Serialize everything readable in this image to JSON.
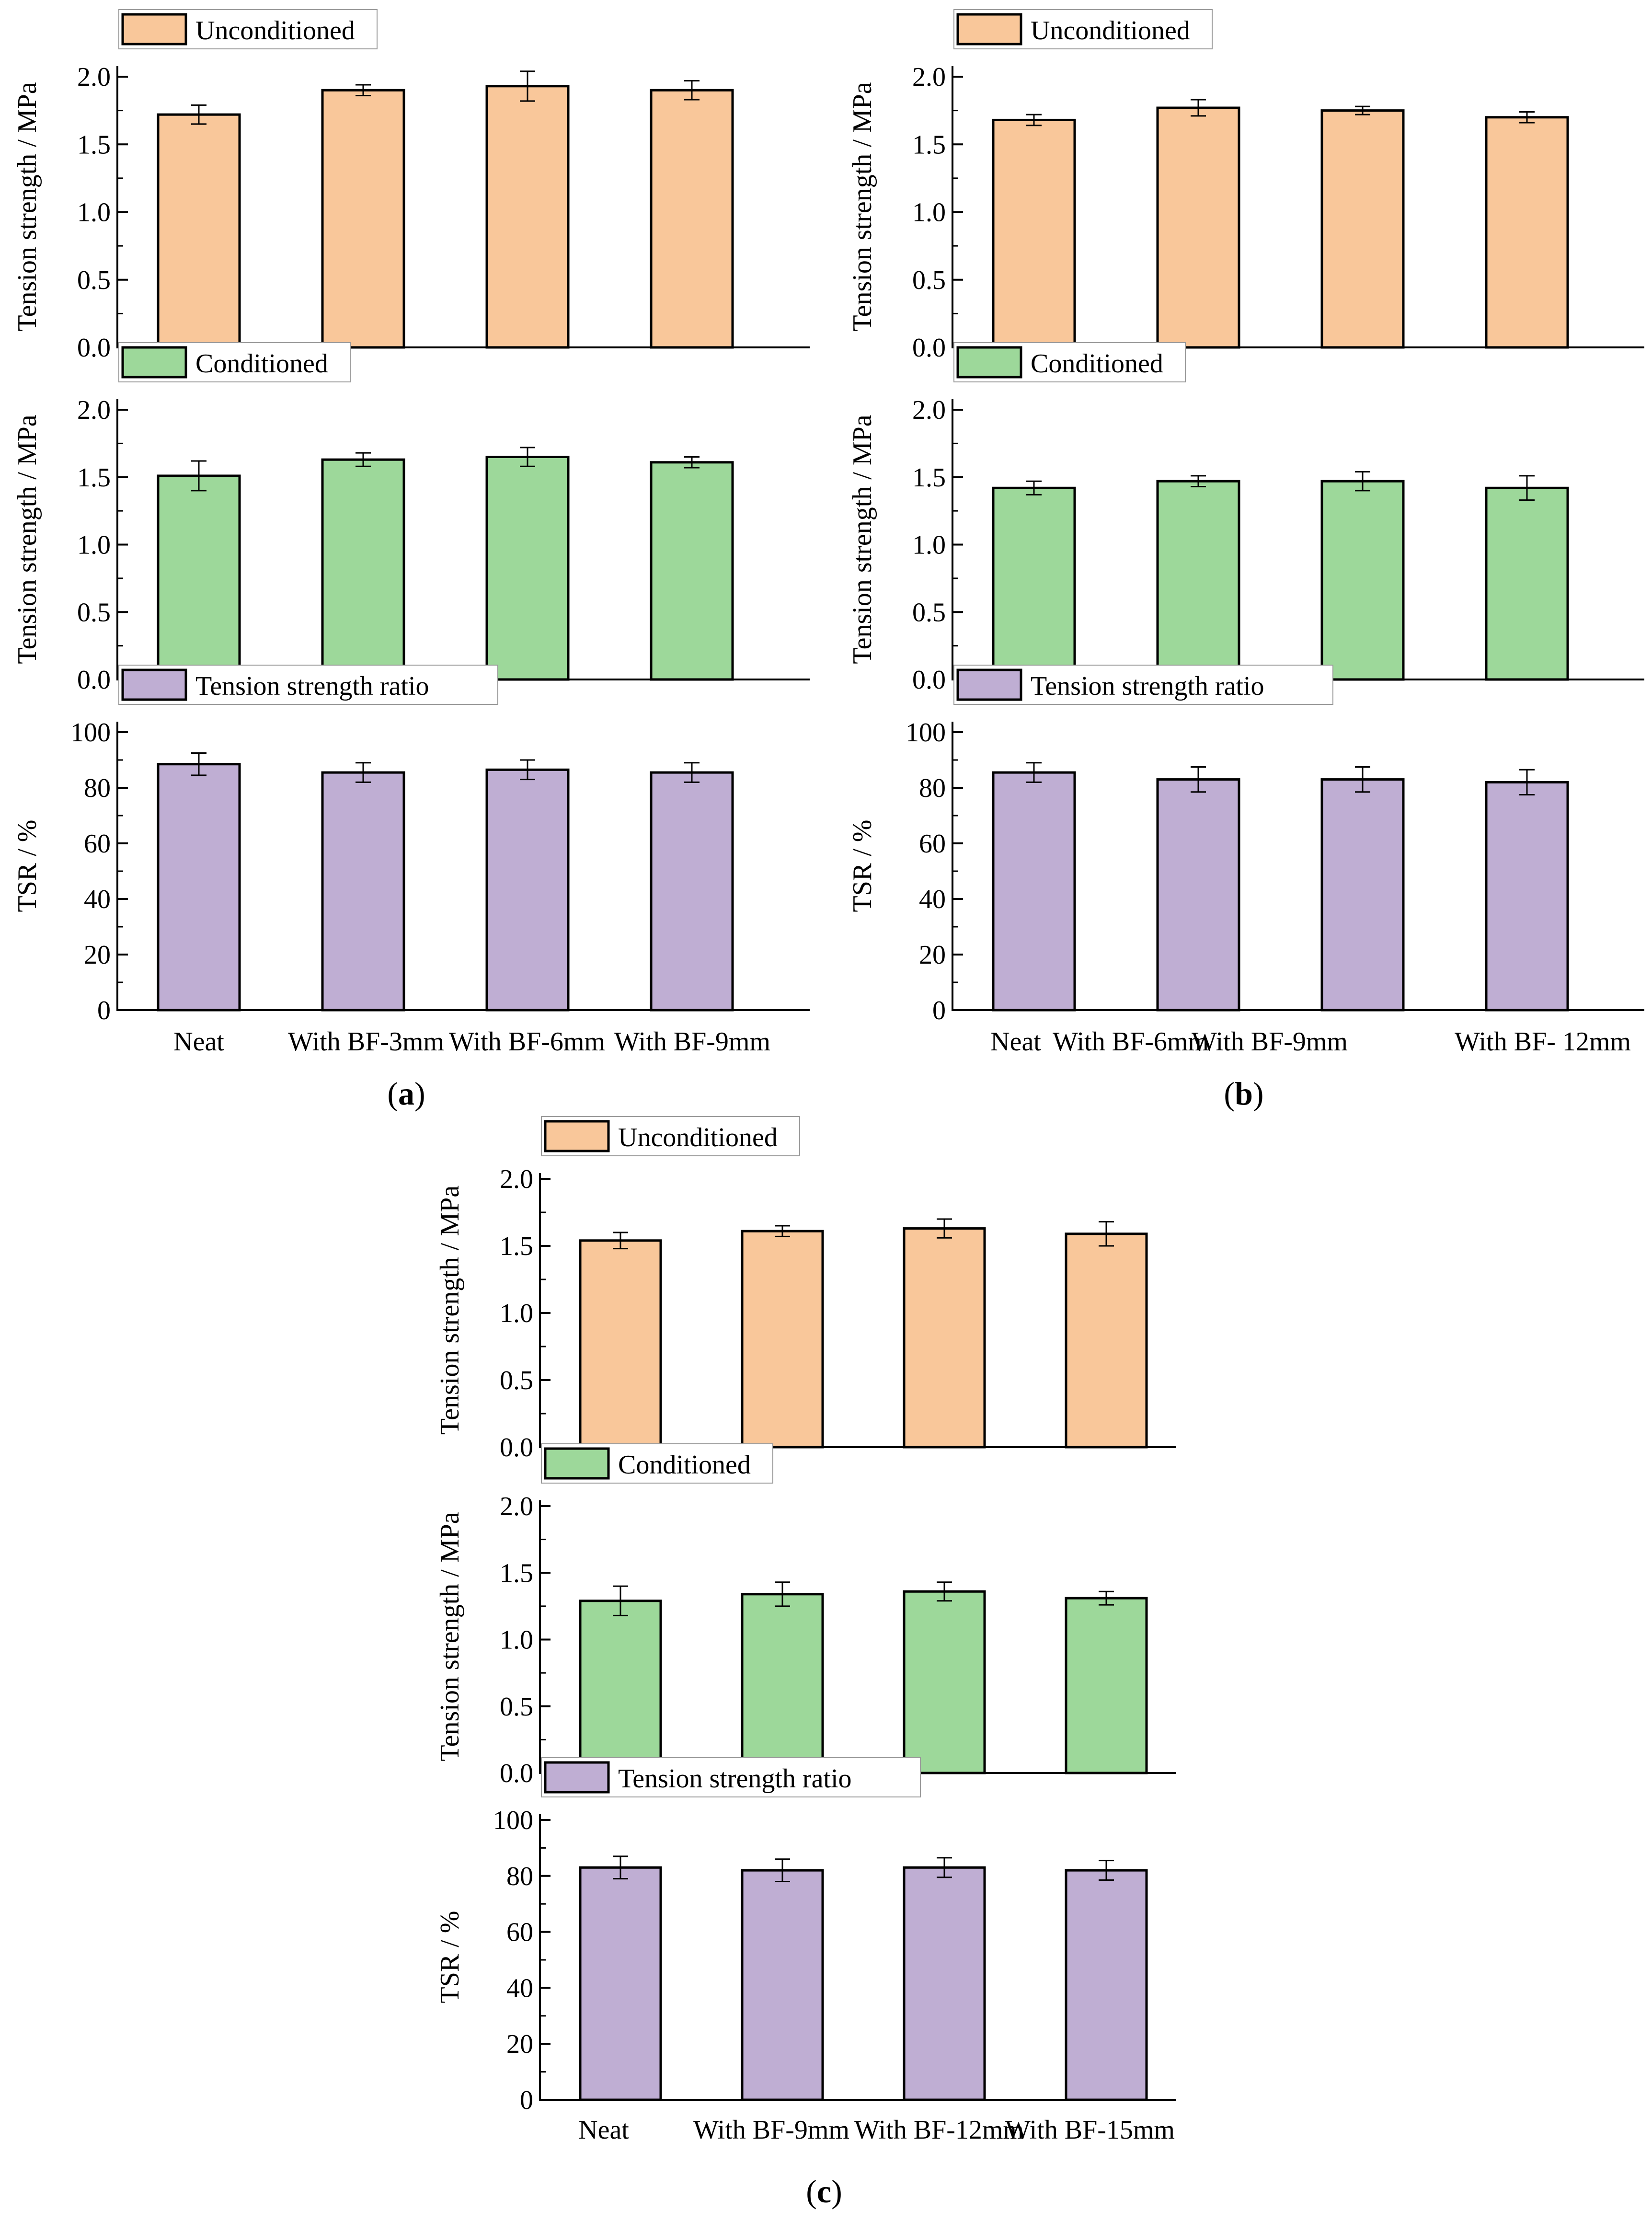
{
  "colors": {
    "unconditioned": "#F9C79A",
    "conditioned": "#9DD89A",
    "tsr": "#BFAED3"
  },
  "chart_data": [
    {
      "panel": "a",
      "caption": "a",
      "type": "bar",
      "categories": [
        "Neat",
        "With BF-3mm",
        "With BF-6mm",
        "With BF-9mm"
      ],
      "subplots": [
        {
          "series": "Unconditioned",
          "color_key": "unconditioned",
          "ylabel": "Tension strength / MPa",
          "ylim": [
            0,
            2.0
          ],
          "ticks": [
            "0.0",
            "0.5",
            "1.0",
            "1.5",
            "2.0"
          ],
          "values": [
            1.72,
            1.9,
            1.93,
            1.9
          ],
          "errors": [
            0.07,
            0.04,
            0.11,
            0.07
          ]
        },
        {
          "series": "Conditioned",
          "color_key": "conditioned",
          "ylabel": "Tension strength / MPa",
          "ylim": [
            0,
            2.0
          ],
          "ticks": [
            "0.0",
            "0.5",
            "1.0",
            "1.5",
            "2.0"
          ],
          "values": [
            1.51,
            1.63,
            1.65,
            1.61
          ],
          "errors": [
            0.11,
            0.05,
            0.07,
            0.04
          ]
        },
        {
          "series": "Tension strength ratio",
          "color_key": "tsr",
          "ylabel": "TSR / %",
          "ylim": [
            0,
            100
          ],
          "ticks": [
            "0",
            "20",
            "40",
            "60",
            "80",
            "100"
          ],
          "values": [
            88.5,
            85.5,
            86.5,
            85.5
          ],
          "errors": [
            4.0,
            3.5,
            3.5,
            3.5
          ]
        }
      ]
    },
    {
      "panel": "b",
      "caption": "b",
      "type": "bar",
      "categories": [
        "Neat",
        "With BF-6mm",
        "With BF-9mm",
        "With BF- 12mm"
      ],
      "subplots": [
        {
          "series": "Unconditioned",
          "color_key": "unconditioned",
          "ylabel": "Tension strength / MPa",
          "ylim": [
            0,
            2.0
          ],
          "ticks": [
            "0.0",
            "0.5",
            "1.0",
            "1.5",
            "2.0"
          ],
          "values": [
            1.68,
            1.77,
            1.75,
            1.7
          ],
          "errors": [
            0.04,
            0.06,
            0.03,
            0.04
          ]
        },
        {
          "series": "Conditioned",
          "color_key": "conditioned",
          "ylabel": "Tension strength / MPa",
          "ylim": [
            0,
            2.0
          ],
          "ticks": [
            "0.0",
            "0.5",
            "1.0",
            "1.5",
            "2.0"
          ],
          "values": [
            1.42,
            1.47,
            1.47,
            1.42
          ],
          "errors": [
            0.05,
            0.04,
            0.07,
            0.09
          ]
        },
        {
          "series": "Tension strength ratio",
          "color_key": "tsr",
          "ylabel": "TSR / %",
          "ylim": [
            0,
            100
          ],
          "ticks": [
            "0",
            "20",
            "40",
            "60",
            "80",
            "100"
          ],
          "values": [
            85.5,
            83.0,
            83.0,
            82.0
          ],
          "errors": [
            3.5,
            4.5,
            4.5,
            4.5
          ]
        }
      ]
    },
    {
      "panel": "c",
      "caption": "c",
      "type": "bar",
      "categories": [
        "Neat",
        "With BF-9mm",
        "With BF-12mm",
        "With BF-15mm"
      ],
      "subplots": [
        {
          "series": "Unconditioned",
          "color_key": "unconditioned",
          "ylabel": "Tension strength / MPa",
          "ylim": [
            0,
            2.0
          ],
          "ticks": [
            "0.0",
            "0.5",
            "1.0",
            "1.5",
            "2.0"
          ],
          "values": [
            1.54,
            1.61,
            1.63,
            1.59
          ],
          "errors": [
            0.06,
            0.04,
            0.07,
            0.09
          ]
        },
        {
          "series": "Conditioned",
          "color_key": "conditioned",
          "ylabel": "Tension strength / MPa",
          "ylim": [
            0,
            2.0
          ],
          "ticks": [
            "0.0",
            "0.5",
            "1.0",
            "1.5",
            "2.0"
          ],
          "values": [
            1.29,
            1.34,
            1.36,
            1.31
          ],
          "errors": [
            0.11,
            0.09,
            0.07,
            0.05
          ]
        },
        {
          "series": "Tension strength ratio",
          "color_key": "tsr",
          "ylabel": "TSR / %",
          "ylim": [
            0,
            100
          ],
          "ticks": [
            "0",
            "20",
            "40",
            "60",
            "80",
            "100"
          ],
          "values": [
            83.0,
            82.0,
            83.0,
            82.0
          ],
          "errors": [
            4.0,
            4.0,
            3.5,
            3.5
          ]
        }
      ]
    }
  ]
}
